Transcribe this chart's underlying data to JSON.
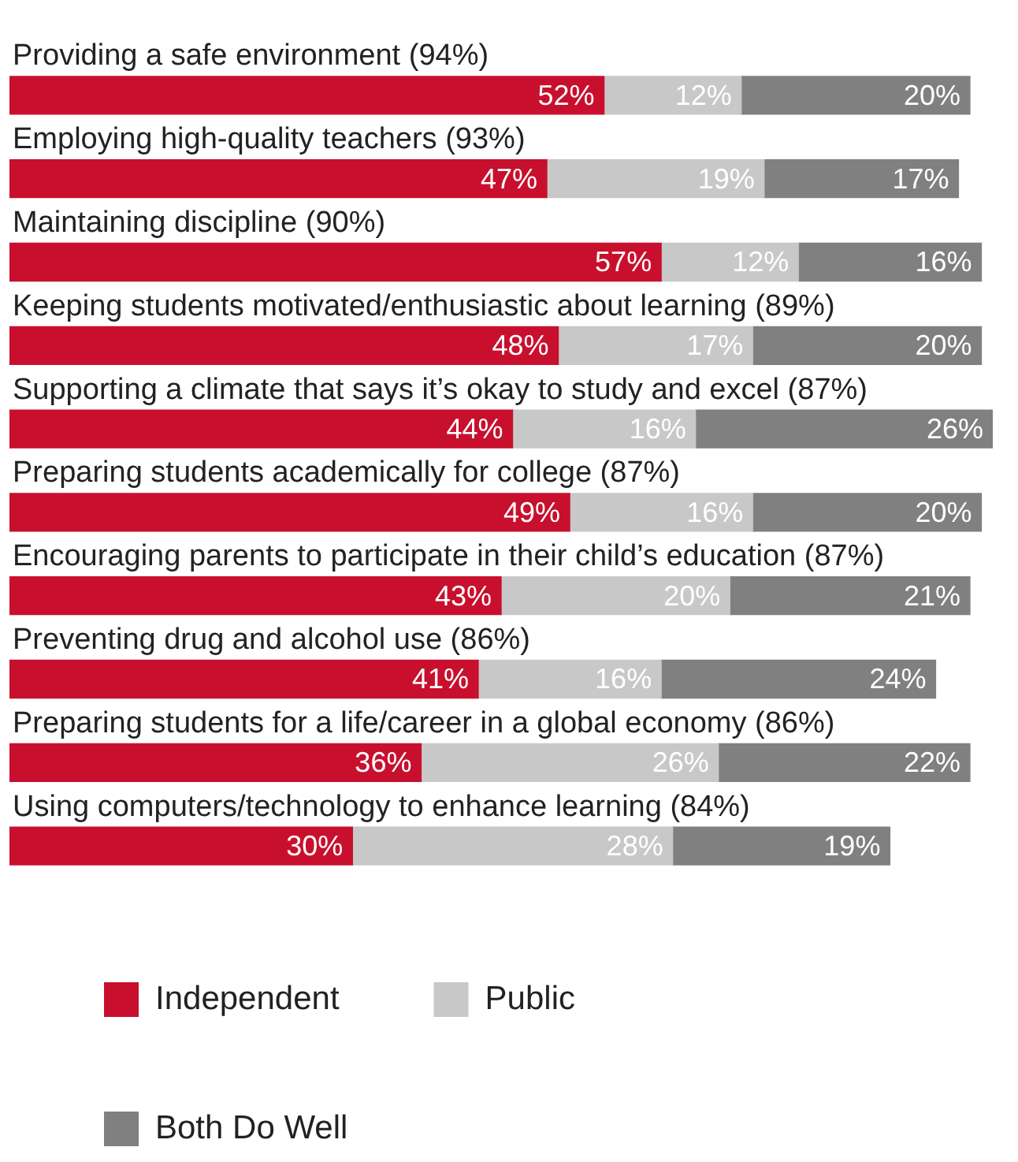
{
  "chart_data": {
    "type": "bar",
    "orientation": "horizontal",
    "stacked": true,
    "legend": "bottom",
    "categories": [
      "Providing a safe environment (94%)",
      "Employing high-quality teachers (93%)",
      "Maintaining discipline (90%)",
      "Keeping students motivated/enthusiastic about learning (89%)",
      "Supporting a climate that says it’s okay to study and excel (87%)",
      "Preparing students academically for college (87%)",
      "Encouraging parents to participate in their child’s education (87%)",
      "Preventing drug and alcohol use (86%)",
      "Preparing students for a life/career in a global economy (86%)",
      "Using computers/technology to enhance learning (84%)"
    ],
    "series": [
      {
        "name": "Independent",
        "color": "#c8102e",
        "values": [
          52,
          47,
          57,
          48,
          44,
          49,
          43,
          41,
          36,
          30
        ],
        "value_labels": [
          "52%",
          "47%",
          "57%",
          "48%",
          "44%",
          "49%",
          "43%",
          "41%",
          "36%",
          "30%"
        ]
      },
      {
        "name": "Public",
        "color": "#c8c8c8",
        "values": [
          12,
          19,
          12,
          17,
          16,
          16,
          20,
          16,
          26,
          28
        ],
        "value_labels": [
          "12%",
          "19%",
          "12%",
          "17%",
          "16%",
          "16%",
          "20%",
          "16%",
          "26%",
          "28%"
        ]
      },
      {
        "name": "Both Do Well",
        "color": "#808080",
        "values": [
          20,
          17,
          16,
          20,
          26,
          20,
          21,
          24,
          22,
          19
        ],
        "value_labels": [
          "20%",
          "17%",
          "16%",
          "20%",
          "26%",
          "20%",
          "21%",
          "24%",
          "22%",
          "19%"
        ]
      }
    ]
  }
}
